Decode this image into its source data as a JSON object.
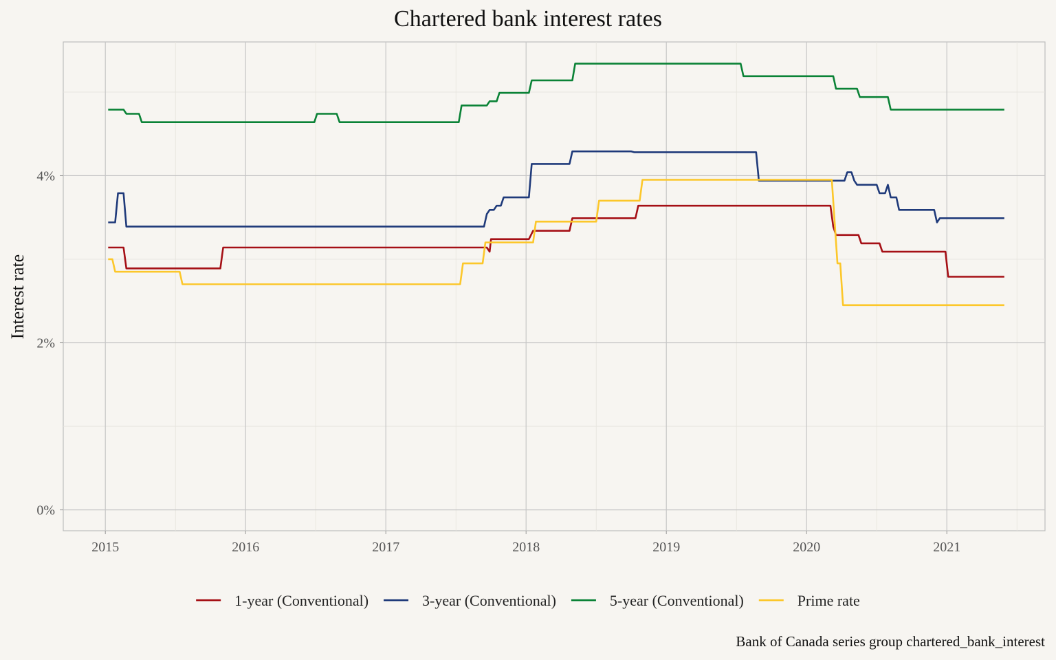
{
  "chart_data": {
    "type": "line",
    "title": "Chartered bank interest rates",
    "xlabel": "",
    "ylabel": "Interest rate",
    "caption": "Bank of Canada series group chartered_bank_interest",
    "xlim": [
      2014.7,
      2021.7
    ],
    "ylim": [
      -0.25,
      5.6
    ],
    "x_ticks": [
      2015,
      2016,
      2017,
      2018,
      2019,
      2020,
      2021
    ],
    "x_tick_labels": [
      "2015",
      "2016",
      "2017",
      "2018",
      "2019",
      "2020",
      "2021"
    ],
    "y_ticks": [
      0,
      2,
      4
    ],
    "y_tick_labels": [
      "0%",
      "2%",
      "4%"
    ],
    "grid": true,
    "legend_position": "bottom",
    "series": [
      {
        "name": "1-year (Conventional)",
        "color": "#a50f15",
        "points": [
          [
            2015.02,
            3.14
          ],
          [
            2015.13,
            3.14
          ],
          [
            2015.15,
            2.89
          ],
          [
            2015.82,
            2.89
          ],
          [
            2015.84,
            3.14
          ],
          [
            2017.72,
            3.14
          ],
          [
            2017.74,
            3.09
          ],
          [
            2017.75,
            3.24
          ],
          [
            2018.02,
            3.24
          ],
          [
            2018.05,
            3.34
          ],
          [
            2018.31,
            3.34
          ],
          [
            2018.33,
            3.49
          ],
          [
            2018.78,
            3.49
          ],
          [
            2018.8,
            3.64
          ],
          [
            2020.17,
            3.64
          ],
          [
            2020.19,
            3.39
          ],
          [
            2020.21,
            3.29
          ],
          [
            2020.37,
            3.29
          ],
          [
            2020.39,
            3.19
          ],
          [
            2020.52,
            3.19
          ],
          [
            2020.54,
            3.09
          ],
          [
            2020.99,
            3.09
          ],
          [
            2021.01,
            2.79
          ],
          [
            2021.41,
            2.79
          ]
        ]
      },
      {
        "name": "3-year (Conventional)",
        "color": "#1f3a7a",
        "points": [
          [
            2015.02,
            3.44
          ],
          [
            2015.07,
            3.44
          ],
          [
            2015.09,
            3.79
          ],
          [
            2015.13,
            3.79
          ],
          [
            2015.15,
            3.39
          ],
          [
            2017.7,
            3.39
          ],
          [
            2017.72,
            3.54
          ],
          [
            2017.74,
            3.59
          ],
          [
            2017.77,
            3.59
          ],
          [
            2017.79,
            3.64
          ],
          [
            2017.82,
            3.64
          ],
          [
            2017.84,
            3.74
          ],
          [
            2018.02,
            3.74
          ],
          [
            2018.04,
            4.14
          ],
          [
            2018.31,
            4.14
          ],
          [
            2018.33,
            4.29
          ],
          [
            2018.75,
            4.29
          ],
          [
            2018.77,
            4.28
          ],
          [
            2019.64,
            4.28
          ],
          [
            2019.66,
            3.94
          ],
          [
            2020.27,
            3.94
          ],
          [
            2020.29,
            4.04
          ],
          [
            2020.32,
            4.04
          ],
          [
            2020.34,
            3.94
          ],
          [
            2020.36,
            3.89
          ],
          [
            2020.5,
            3.89
          ],
          [
            2020.52,
            3.79
          ],
          [
            2020.56,
            3.79
          ],
          [
            2020.58,
            3.89
          ],
          [
            2020.6,
            3.74
          ],
          [
            2020.64,
            3.74
          ],
          [
            2020.66,
            3.59
          ],
          [
            2020.91,
            3.59
          ],
          [
            2020.93,
            3.44
          ],
          [
            2020.95,
            3.49
          ],
          [
            2021.41,
            3.49
          ]
        ]
      },
      {
        "name": "5-year (Conventional)",
        "color": "#0a8236",
        "points": [
          [
            2015.02,
            4.79
          ],
          [
            2015.13,
            4.79
          ],
          [
            2015.15,
            4.74
          ],
          [
            2015.24,
            4.74
          ],
          [
            2015.26,
            4.64
          ],
          [
            2016.49,
            4.64
          ],
          [
            2016.51,
            4.74
          ],
          [
            2016.65,
            4.74
          ],
          [
            2016.67,
            4.64
          ],
          [
            2017.52,
            4.64
          ],
          [
            2017.54,
            4.84
          ],
          [
            2017.72,
            4.84
          ],
          [
            2017.74,
            4.89
          ],
          [
            2017.79,
            4.89
          ],
          [
            2017.81,
            4.99
          ],
          [
            2018.02,
            4.99
          ],
          [
            2018.04,
            5.14
          ],
          [
            2018.33,
            5.14
          ],
          [
            2018.35,
            5.34
          ],
          [
            2019.53,
            5.34
          ],
          [
            2019.55,
            5.19
          ],
          [
            2020.19,
            5.19
          ],
          [
            2020.21,
            5.04
          ],
          [
            2020.36,
            5.04
          ],
          [
            2020.38,
            4.94
          ],
          [
            2020.58,
            4.94
          ],
          [
            2020.6,
            4.79
          ],
          [
            2021.41,
            4.79
          ]
        ]
      },
      {
        "name": "Prime rate",
        "color": "#fcc72a",
        "points": [
          [
            2015.02,
            3.0
          ],
          [
            2015.05,
            3.0
          ],
          [
            2015.07,
            2.85
          ],
          [
            2015.53,
            2.85
          ],
          [
            2015.55,
            2.7
          ],
          [
            2017.53,
            2.7
          ],
          [
            2017.55,
            2.95
          ],
          [
            2017.69,
            2.95
          ],
          [
            2017.71,
            3.2
          ],
          [
            2018.05,
            3.2
          ],
          [
            2018.07,
            3.45
          ],
          [
            2018.5,
            3.45
          ],
          [
            2018.52,
            3.7
          ],
          [
            2018.81,
            3.7
          ],
          [
            2018.83,
            3.95
          ],
          [
            2020.18,
            3.95
          ],
          [
            2020.2,
            3.45
          ],
          [
            2020.22,
            2.95
          ],
          [
            2020.24,
            2.95
          ],
          [
            2020.26,
            2.45
          ],
          [
            2021.41,
            2.45
          ]
        ]
      }
    ]
  }
}
